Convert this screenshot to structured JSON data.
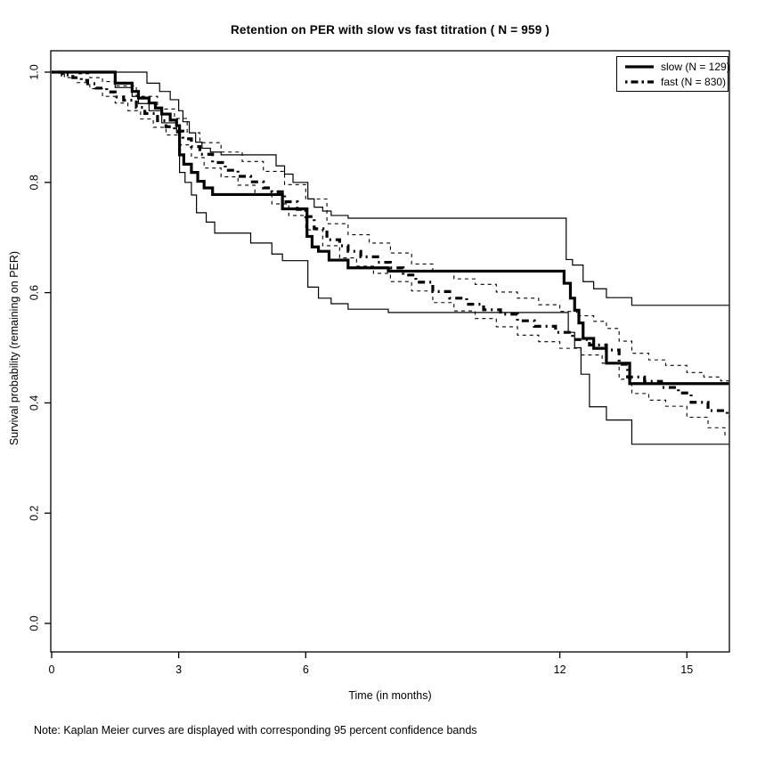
{
  "chart_data": {
    "type": "line",
    "subtype": "kaplan-meier-step",
    "title": "Retention on PER with slow vs fast titration ( N = 959 )",
    "xlabel": "Time (in months)",
    "ylabel": "Survival probability (remaining on PER)",
    "note": "Note: Kaplan Meier curves are displayed with corresponding 95 percent confidence bands",
    "xlim": [
      0,
      16.0
    ],
    "ylim": [
      0,
      1
    ],
    "xticks": [
      "0",
      "3",
      "6",
      "12",
      "15"
    ],
    "yticks": [
      "0.0",
      "0.2",
      "0.4",
      "0.6",
      "0.8",
      "1.0"
    ],
    "grid": false,
    "colors": {
      "stroke": "#000000",
      "background": "#ffffff"
    },
    "legend": {
      "position": "top-right",
      "entries": [
        {
          "label": "slow (N = 129)",
          "style": "solid-thick"
        },
        {
          "label": "fast (N = 830)",
          "style": "dashdot-thick"
        }
      ]
    },
    "series": [
      {
        "name": "slow-lower-ci",
        "style": "solid-thin",
        "points": [
          [
            0,
            1.0
          ],
          [
            1.5,
            0.972
          ],
          [
            1.9,
            0.956
          ],
          [
            2.05,
            0.943
          ],
          [
            2.3,
            0.93
          ],
          [
            2.6,
            0.908
          ],
          [
            2.95,
            0.89
          ],
          [
            3.02,
            0.818
          ],
          [
            3.15,
            0.8
          ],
          [
            3.3,
            0.777
          ],
          [
            3.42,
            0.745
          ],
          [
            3.65,
            0.728
          ],
          [
            3.85,
            0.708
          ],
          [
            4.7,
            0.69
          ],
          [
            5.2,
            0.67
          ],
          [
            5.45,
            0.658
          ],
          [
            6.05,
            0.61
          ],
          [
            6.3,
            0.59
          ],
          [
            6.6,
            0.58
          ],
          [
            7.0,
            0.57
          ],
          [
            7.95,
            0.564
          ],
          [
            12.2,
            0.528
          ],
          [
            12.35,
            0.5
          ],
          [
            12.5,
            0.452
          ],
          [
            12.7,
            0.393
          ],
          [
            13.1,
            0.369
          ],
          [
            13.7,
            0.325
          ]
        ]
      },
      {
        "name": "slow-upper-ci",
        "style": "solid-thin",
        "points": [
          [
            0,
            1.0
          ],
          [
            2.25,
            0.98
          ],
          [
            2.55,
            0.965
          ],
          [
            2.8,
            0.95
          ],
          [
            3.0,
            0.93
          ],
          [
            3.1,
            0.91
          ],
          [
            3.25,
            0.89
          ],
          [
            3.4,
            0.873
          ],
          [
            3.55,
            0.862
          ],
          [
            3.75,
            0.855
          ],
          [
            4.0,
            0.85
          ],
          [
            5.3,
            0.83
          ],
          [
            5.5,
            0.815
          ],
          [
            5.7,
            0.8
          ],
          [
            6.05,
            0.77
          ],
          [
            6.2,
            0.755
          ],
          [
            6.4,
            0.748
          ],
          [
            6.6,
            0.74
          ],
          [
            7.0,
            0.735
          ],
          [
            12.15,
            0.66
          ],
          [
            12.3,
            0.65
          ],
          [
            12.55,
            0.62
          ],
          [
            12.8,
            0.607
          ],
          [
            13.1,
            0.591
          ],
          [
            13.7,
            0.577
          ]
        ]
      },
      {
        "name": "fast-lower-ci",
        "style": "dashed-thin",
        "points": [
          [
            0,
            1.0
          ],
          [
            0.3,
            0.99
          ],
          [
            0.6,
            0.981
          ],
          [
            0.9,
            0.97
          ],
          [
            1.2,
            0.956
          ],
          [
            1.5,
            0.944
          ],
          [
            1.8,
            0.93
          ],
          [
            2.1,
            0.915
          ],
          [
            2.4,
            0.9
          ],
          [
            2.7,
            0.886
          ],
          [
            3.0,
            0.868
          ],
          [
            3.3,
            0.845
          ],
          [
            3.6,
            0.826
          ],
          [
            4.0,
            0.81
          ],
          [
            4.4,
            0.795
          ],
          [
            4.8,
            0.779
          ],
          [
            5.2,
            0.761
          ],
          [
            5.6,
            0.74
          ],
          [
            6.0,
            0.714
          ],
          [
            6.4,
            0.685
          ],
          [
            6.8,
            0.663
          ],
          [
            7.2,
            0.648
          ],
          [
            7.6,
            0.635
          ],
          [
            8.0,
            0.62
          ],
          [
            8.5,
            0.603
          ],
          [
            9.0,
            0.582
          ],
          [
            9.5,
            0.567
          ],
          [
            10.0,
            0.553
          ],
          [
            10.5,
            0.538
          ],
          [
            11.0,
            0.523
          ],
          [
            11.5,
            0.511
          ],
          [
            12.0,
            0.499
          ],
          [
            12.5,
            0.487
          ],
          [
            13.0,
            0.472
          ],
          [
            13.4,
            0.443
          ],
          [
            13.7,
            0.417
          ],
          [
            14.1,
            0.405
          ],
          [
            14.5,
            0.394
          ],
          [
            15.0,
            0.374
          ],
          [
            15.5,
            0.355
          ],
          [
            15.9,
            0.342
          ]
        ]
      },
      {
        "name": "fast-upper-ci",
        "style": "dashed-thin",
        "points": [
          [
            0,
            1.0
          ],
          [
            0.6,
            0.997
          ],
          [
            0.9,
            0.99
          ],
          [
            1.2,
            0.983
          ],
          [
            1.5,
            0.975
          ],
          [
            2.0,
            0.956
          ],
          [
            2.5,
            0.933
          ],
          [
            2.9,
            0.916
          ],
          [
            3.2,
            0.89
          ],
          [
            3.5,
            0.872
          ],
          [
            4.0,
            0.855
          ],
          [
            4.5,
            0.838
          ],
          [
            5.0,
            0.82
          ],
          [
            5.5,
            0.796
          ],
          [
            6.0,
            0.77
          ],
          [
            6.5,
            0.725
          ],
          [
            7.0,
            0.705
          ],
          [
            7.5,
            0.69
          ],
          [
            8.0,
            0.672
          ],
          [
            8.5,
            0.652
          ],
          [
            9.0,
            0.638
          ],
          [
            9.5,
            0.625
          ],
          [
            10.0,
            0.615
          ],
          [
            10.5,
            0.601
          ],
          [
            11.0,
            0.59
          ],
          [
            11.5,
            0.578
          ],
          [
            12.0,
            0.566
          ],
          [
            12.4,
            0.558
          ],
          [
            12.8,
            0.548
          ],
          [
            13.1,
            0.535
          ],
          [
            13.4,
            0.512
          ],
          [
            13.7,
            0.49
          ],
          [
            14.1,
            0.478
          ],
          [
            14.5,
            0.468
          ],
          [
            15.0,
            0.455
          ],
          [
            15.4,
            0.447
          ],
          [
            15.8,
            0.44
          ]
        ]
      },
      {
        "name": "fast",
        "style": "dashdot-thick",
        "points": [
          [
            0,
            1.0
          ],
          [
            0.25,
            0.995
          ],
          [
            0.5,
            0.99
          ],
          [
            0.7,
            0.985
          ],
          [
            0.85,
            0.979
          ],
          [
            1.05,
            0.971
          ],
          [
            1.3,
            0.964
          ],
          [
            1.5,
            0.955
          ],
          [
            1.7,
            0.949
          ],
          [
            2.0,
            0.936
          ],
          [
            2.2,
            0.925
          ],
          [
            2.5,
            0.912
          ],
          [
            2.7,
            0.901
          ],
          [
            2.9,
            0.893
          ],
          [
            3.1,
            0.879
          ],
          [
            3.3,
            0.865
          ],
          [
            3.5,
            0.851
          ],
          [
            3.8,
            0.836
          ],
          [
            4.1,
            0.822
          ],
          [
            4.4,
            0.811
          ],
          [
            4.7,
            0.801
          ],
          [
            5.0,
            0.79
          ],
          [
            5.2,
            0.783
          ],
          [
            5.5,
            0.765
          ],
          [
            5.8,
            0.751
          ],
          [
            6.0,
            0.738
          ],
          [
            6.2,
            0.716
          ],
          [
            6.5,
            0.696
          ],
          [
            6.8,
            0.685
          ],
          [
            7.0,
            0.675
          ],
          [
            7.3,
            0.665
          ],
          [
            7.7,
            0.655
          ],
          [
            8.0,
            0.645
          ],
          [
            8.3,
            0.632
          ],
          [
            8.6,
            0.619
          ],
          [
            9.0,
            0.602
          ],
          [
            9.4,
            0.59
          ],
          [
            9.8,
            0.579
          ],
          [
            10.2,
            0.569
          ],
          [
            10.6,
            0.561
          ],
          [
            11.0,
            0.549
          ],
          [
            11.4,
            0.539
          ],
          [
            11.9,
            0.528
          ],
          [
            12.3,
            0.515
          ],
          [
            12.7,
            0.505
          ],
          [
            13.1,
            0.496
          ],
          [
            13.4,
            0.47
          ],
          [
            13.6,
            0.447
          ],
          [
            14.0,
            0.439
          ],
          [
            14.4,
            0.428
          ],
          [
            14.8,
            0.418
          ],
          [
            15.1,
            0.401
          ],
          [
            15.5,
            0.386
          ],
          [
            15.95,
            0.375
          ]
        ]
      },
      {
        "name": "slow",
        "style": "solid-thick",
        "points": [
          [
            0,
            1.0
          ],
          [
            1.5,
            0.98
          ],
          [
            1.9,
            0.965
          ],
          [
            2.05,
            0.953
          ],
          [
            2.3,
            0.944
          ],
          [
            2.45,
            0.935
          ],
          [
            2.6,
            0.924
          ],
          [
            2.8,
            0.913
          ],
          [
            2.95,
            0.903
          ],
          [
            3.02,
            0.85
          ],
          [
            3.12,
            0.833
          ],
          [
            3.3,
            0.818
          ],
          [
            3.45,
            0.802
          ],
          [
            3.6,
            0.79
          ],
          [
            3.8,
            0.778
          ],
          [
            5.45,
            0.752
          ],
          [
            6.03,
            0.702
          ],
          [
            6.15,
            0.683
          ],
          [
            6.3,
            0.675
          ],
          [
            6.55,
            0.659
          ],
          [
            7.0,
            0.645
          ],
          [
            7.95,
            0.639
          ],
          [
            12.1,
            0.617
          ],
          [
            12.25,
            0.59
          ],
          [
            12.35,
            0.568
          ],
          [
            12.45,
            0.545
          ],
          [
            12.55,
            0.517
          ],
          [
            12.8,
            0.499
          ],
          [
            13.1,
            0.472
          ],
          [
            13.65,
            0.435
          ]
        ]
      }
    ]
  }
}
